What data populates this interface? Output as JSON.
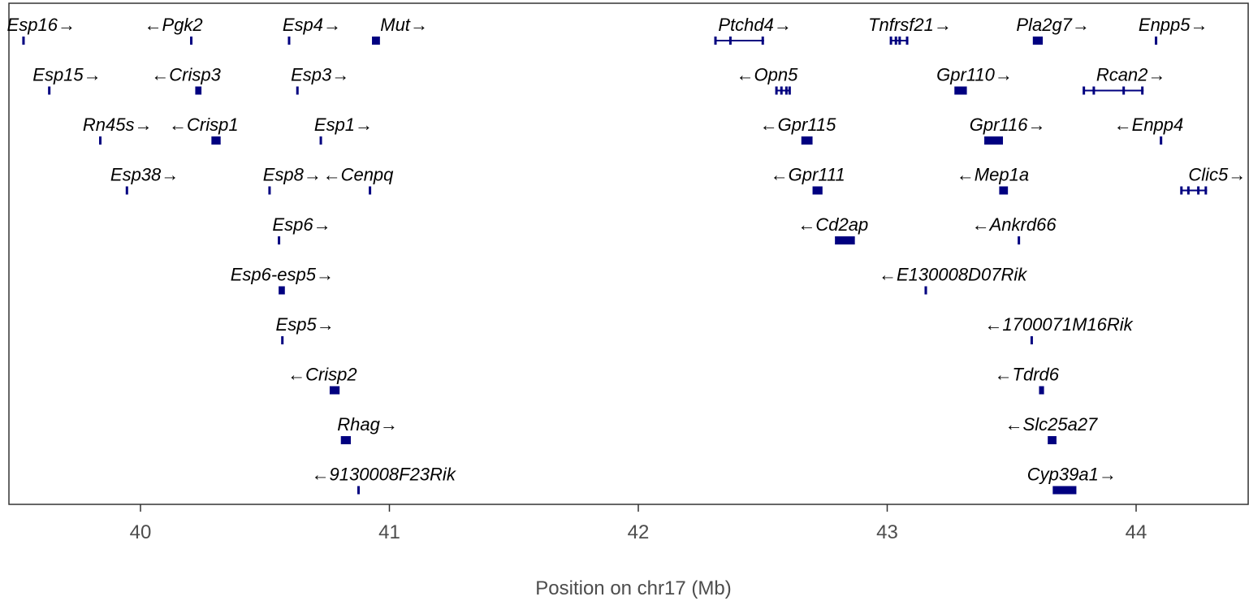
{
  "chart_data": {
    "type": "gene-track",
    "xlabel": "Position on chr17 (Mb)",
    "xlim": [
      39.47,
      44.45
    ],
    "ticks": [
      40,
      41,
      42,
      43,
      44
    ],
    "tick_labels": [
      "40",
      "41",
      "42",
      "43",
      "44"
    ],
    "grid": false,
    "colors": {
      "gene": "#000080",
      "text": "#000000",
      "axis": "#333333",
      "tick_text": "#4d4d4d"
    },
    "genes": [
      {
        "name": "Esp16",
        "strand": "+",
        "row": 0,
        "start": 39.525,
        "end": 39.535
      },
      {
        "name": "Pgk2",
        "strand": "-",
        "row": 0,
        "start": 40.2,
        "end": 40.208
      },
      {
        "name": "Esp4",
        "strand": "+",
        "row": 0,
        "start": 40.593,
        "end": 40.601
      },
      {
        "name": "Mut",
        "strand": "+",
        "row": 0,
        "start": 40.93,
        "end": 40.962
      },
      {
        "name": "Ptchd4",
        "strand": "+",
        "row": 0,
        "start": 42.31,
        "end": 42.505,
        "exons": [
          42.31,
          42.37,
          42.5
        ]
      },
      {
        "name": "Tnfrsf21",
        "strand": "+",
        "row": 0,
        "start": 43.015,
        "end": 43.085,
        "exons": [
          43.015,
          43.035,
          43.05,
          43.08
        ]
      },
      {
        "name": "Pla2g7",
        "strand": "+",
        "row": 0,
        "start": 43.585,
        "end": 43.625
      },
      {
        "name": "Enpp5",
        "strand": "+",
        "row": 0,
        "start": 44.075,
        "end": 44.085
      },
      {
        "name": "Esp15",
        "strand": "+",
        "row": 1,
        "start": 39.63,
        "end": 39.637
      },
      {
        "name": "Crisp3",
        "strand": "-",
        "row": 1,
        "start": 40.22,
        "end": 40.245
      },
      {
        "name": "Esp3",
        "strand": "+",
        "row": 1,
        "start": 40.627,
        "end": 40.634
      },
      {
        "name": "Opn5",
        "strand": "-",
        "row": 1,
        "start": 42.555,
        "end": 42.61,
        "exons": [
          42.555,
          42.575,
          42.595,
          42.608
        ]
      },
      {
        "name": "Gpr110",
        "strand": "+",
        "row": 1,
        "start": 43.27,
        "end": 43.32
      },
      {
        "name": "Rcan2",
        "strand": "+",
        "row": 1,
        "start": 43.79,
        "end": 44.03,
        "exons": [
          43.79,
          43.83,
          43.95,
          44.025
        ]
      },
      {
        "name": "Rn45s",
        "strand": "+",
        "row": 2,
        "start": 39.835,
        "end": 39.842
      },
      {
        "name": "Crisp1",
        "strand": "-",
        "row": 2,
        "start": 40.285,
        "end": 40.322
      },
      {
        "name": "Esp1",
        "strand": "+",
        "row": 2,
        "start": 40.721,
        "end": 40.728
      },
      {
        "name": "Gpr115",
        "strand": "-",
        "row": 2,
        "start": 42.655,
        "end": 42.7
      },
      {
        "name": "Gpr116",
        "strand": "+",
        "row": 2,
        "start": 43.39,
        "end": 43.465
      },
      {
        "name": "Enpp4",
        "strand": "-",
        "row": 2,
        "start": 44.095,
        "end": 44.105
      },
      {
        "name": "Esp38",
        "strand": "+",
        "row": 3,
        "start": 39.942,
        "end": 39.949
      },
      {
        "name": "Esp8",
        "strand": "+",
        "row": 3,
        "start": 40.515,
        "end": 40.522
      },
      {
        "name": "Cenpq",
        "strand": "-",
        "row": 3,
        "start": 40.918,
        "end": 40.926
      },
      {
        "name": "Gpr111",
        "strand": "-",
        "row": 3,
        "start": 42.7,
        "end": 42.74
      },
      {
        "name": "Mep1a",
        "strand": "-",
        "row": 3,
        "start": 43.45,
        "end": 43.485
      },
      {
        "name": "Clic5",
        "strand": "+",
        "row": 3,
        "start": 44.18,
        "end": 44.285,
        "exons": [
          44.182,
          44.21,
          44.25,
          44.28
        ]
      },
      {
        "name": "Esp6",
        "strand": "+",
        "row": 4,
        "start": 40.553,
        "end": 40.56
      },
      {
        "name": "Cd2ap",
        "strand": "-",
        "row": 4,
        "start": 42.79,
        "end": 42.87
      },
      {
        "name": "Ankrd66",
        "strand": "-",
        "row": 4,
        "start": 43.525,
        "end": 43.533
      },
      {
        "name": "Esp6-esp5",
        "strand": "+",
        "row": 5,
        "start": 40.555,
        "end": 40.58
      },
      {
        "name": "E130008D07Rik",
        "strand": "-",
        "row": 5,
        "start": 43.15,
        "end": 43.16
      },
      {
        "name": "Esp5",
        "strand": "+",
        "row": 6,
        "start": 40.566,
        "end": 40.574
      },
      {
        "name": "1700071M16Rik",
        "strand": "-",
        "row": 6,
        "start": 43.577,
        "end": 43.584
      },
      {
        "name": "Crisp2",
        "strand": "-",
        "row": 7,
        "start": 40.76,
        "end": 40.8
      },
      {
        "name": "Tdrd6",
        "strand": "-",
        "row": 7,
        "start": 43.61,
        "end": 43.63
      },
      {
        "name": "Rhag",
        "strand": "+",
        "row": 8,
        "start": 40.805,
        "end": 40.845
      },
      {
        "name": "Slc25a27",
        "strand": "-",
        "row": 8,
        "start": 43.645,
        "end": 43.68
      },
      {
        "name": "9130008F23Rik",
        "strand": "-",
        "row": 9,
        "start": 40.872,
        "end": 40.88
      },
      {
        "name": "Cyp39a1",
        "strand": "+",
        "row": 9,
        "start": 43.665,
        "end": 43.76
      }
    ]
  }
}
